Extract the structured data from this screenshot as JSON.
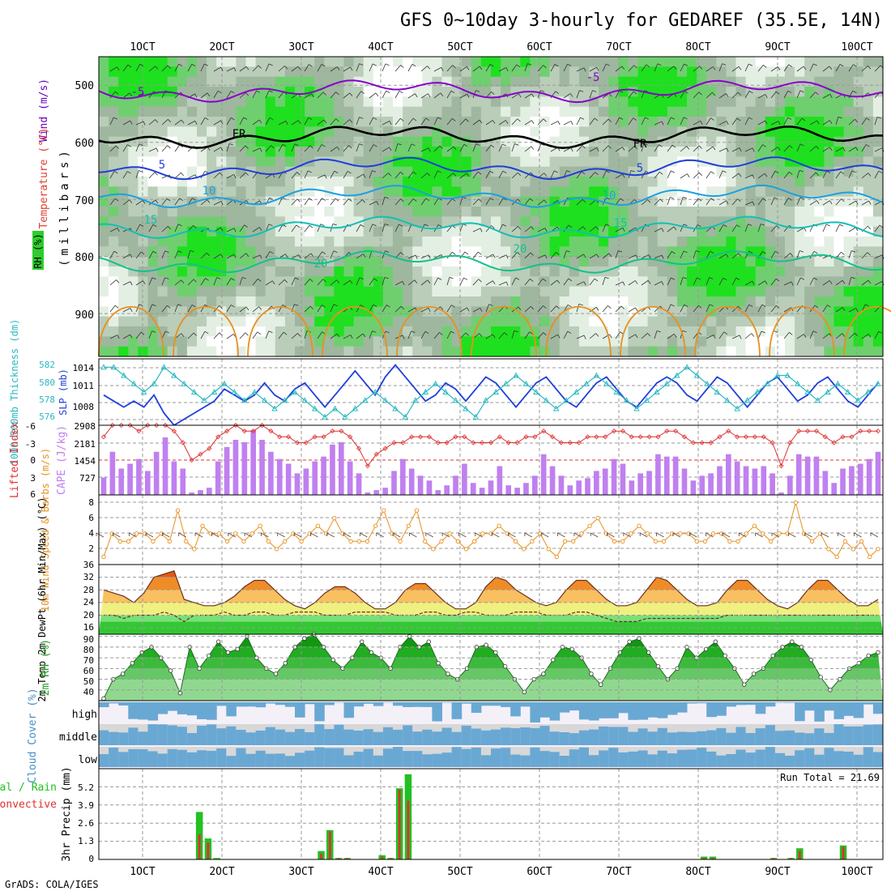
{
  "figure": {
    "title": "GFS 0~10day 3-hourly for GEDAREF (35.5E, 14N)",
    "credit": "GrADS: COLA/IGES",
    "x_axis": {
      "type": "date",
      "tick_labels": [
        "1OCT",
        "2OCT",
        "3OCT",
        "4OCT",
        "5OCT",
        "6OCT",
        "7OCT",
        "8OCT",
        "9OCT",
        "10OCT"
      ]
    }
  },
  "colors": {
    "rh_light": "#e4efe4",
    "rh_mid": "#b9cdb9",
    "rh_grey": "#9fb79f",
    "rh_green": "#6fcf6f",
    "rh_bright": "#1ee01e",
    "temp_purple": "#8800cc",
    "temp_blue": "#1f3fd9",
    "temp_sky": "#1ea0e0",
    "temp_teal": "#14bfb4",
    "temp_green": "#14c08c",
    "temp_orange": "#e8901e",
    "freezing": "#000000",
    "slp": "#1f3fd9",
    "thickness": "#2ab8c0",
    "li": "#e03030",
    "cape": "#c080f0",
    "wind10": "#e8901e",
    "cloud_blue": "#6aa8d4",
    "cloud_grey": "#d8d8d8",
    "precip_total": "#22c022",
    "precip_conv": "#e03030"
  },
  "chart_data": [
    {
      "type": "heatmap",
      "panel": "profile",
      "ylabel": "(millibars)",
      "side_labels": [
        "Wind (m/s)",
        "Temperature (°C)",
        "RH (%)"
      ],
      "y_ticks": [
        "500",
        "600",
        "700",
        "800",
        "900"
      ],
      "ylim": [
        450,
        975
      ],
      "contour_labels": [
        "-5",
        "FR",
        "5",
        "10",
        "15",
        "20",
        "-5",
        "FR",
        "5",
        "10",
        "15",
        "20"
      ],
      "contour_levels": [
        {
          "name": "-5",
          "level_mb": 510
        },
        {
          "name": "FR",
          "level_mb": 590
        },
        {
          "name": "5",
          "level_mb": 645
        },
        {
          "name": "10",
          "level_mb": 695
        },
        {
          "name": "15",
          "level_mb": 750
        },
        {
          "name": "20",
          "level_mb": 810
        }
      ]
    },
    {
      "type": "line",
      "panel": "slp",
      "ylabel_left": "1000-500mb Thickness (dm)",
      "ylabel_right": "SLP (mb)",
      "left_ticks": [
        "582",
        "580",
        "578",
        "576"
      ],
      "right_ticks": [
        "1014",
        "1011",
        "1008"
      ],
      "left_lim": [
        575,
        583
      ],
      "right_lim": [
        1005,
        1016
      ],
      "series": [
        {
          "name": "SLP",
          "axis": "right",
          "values": [
            1010,
            1009,
            1008,
            1009,
            1008,
            1010,
            1007,
            1005,
            1006,
            1007,
            1008,
            1009,
            1011,
            1010,
            1009,
            1010,
            1012,
            1010,
            1009,
            1011,
            1012,
            1010,
            1008,
            1010,
            1012,
            1014,
            1012,
            1010,
            1013,
            1015,
            1013,
            1011,
            1009,
            1010,
            1012,
            1011,
            1009,
            1011,
            1013,
            1012,
            1010,
            1008,
            1010,
            1012,
            1013,
            1011,
            1009,
            1008,
            1010,
            1012,
            1013,
            1011,
            1009,
            1008,
            1010,
            1012,
            1013,
            1012,
            1010,
            1009,
            1011,
            1013,
            1012,
            1010,
            1008,
            1010,
            1012,
            1013,
            1011,
            1009,
            1010,
            1012,
            1013,
            1011,
            1009,
            1008,
            1010,
            1012
          ]
        },
        {
          "name": "Thickness",
          "axis": "left",
          "values": [
            582,
            582,
            581,
            580,
            579,
            580,
            582,
            581,
            580,
            579,
            578,
            579,
            580,
            579,
            578,
            579,
            578,
            577,
            578,
            579,
            578,
            577,
            576,
            577,
            576,
            577,
            578,
            579,
            578,
            577,
            576,
            578,
            579,
            580,
            579,
            578,
            577,
            576,
            578,
            579,
            580,
            581,
            580,
            579,
            578,
            577,
            578,
            579,
            580,
            581,
            580,
            579,
            578,
            577,
            578,
            579,
            580,
            581,
            582,
            581,
            580,
            579,
            578,
            577,
            578,
            579,
            580,
            581,
            581,
            580,
            579,
            578,
            579,
            580,
            579,
            578,
            579,
            580
          ]
        }
      ]
    },
    {
      "type": "bar",
      "panel": "cape_li",
      "ylabel_left": "Lifted Index",
      "ylabel_right": "CAPE (J/kg)",
      "left_ticks": [
        "-6",
        "-3",
        "0",
        "3",
        "6"
      ],
      "right_ticks": [
        "2908",
        "2181",
        "1454",
        "727"
      ],
      "left_lim": [
        -6,
        6
      ],
      "right_lim": [
        0,
        2908
      ],
      "series": [
        {
          "name": "CAPE",
          "values": [
            727,
            1800,
            1100,
            1300,
            1500,
            1000,
            1800,
            2400,
            1400,
            1100,
            100,
            200,
            300,
            1400,
            2000,
            2300,
            2200,
            2700,
            2300,
            1800,
            1500,
            1300,
            900,
            1100,
            1400,
            1600,
            2100,
            2200,
            1400,
            900,
            100,
            200,
            300,
            1000,
            1500,
            1100,
            800,
            600,
            200,
            400,
            800,
            1300,
            500,
            300,
            600,
            1200,
            400,
            300,
            500,
            800,
            1700,
            1200,
            800,
            400,
            600,
            700,
            1000,
            1100,
            1500,
            1300,
            600,
            900,
            1000,
            1700,
            1600,
            1600,
            1100,
            600,
            800,
            900,
            1200,
            1700,
            1400,
            1200,
            1100,
            1200,
            900,
            100,
            800,
            1700,
            1600,
            1600,
            1000,
            500,
            1100,
            1200,
            1300,
            1500,
            1800
          ]
        },
        {
          "name": "LI",
          "values": [
            -4,
            -6,
            -6,
            -6,
            -5,
            -6,
            -6,
            -6,
            -5,
            -3,
            0,
            -1,
            -2,
            -4,
            -5,
            -6,
            -5,
            -5,
            -6,
            -5,
            -4,
            -4,
            -3,
            -3,
            -4,
            -4,
            -5,
            -5,
            -4,
            -2,
            1,
            -1,
            -2,
            -3,
            -3,
            -4,
            -4,
            -4,
            -3,
            -3,
            -4,
            -4,
            -3,
            -3,
            -3,
            -4,
            -3,
            -3,
            -4,
            -4,
            -5,
            -4,
            -3,
            -3,
            -3,
            -4,
            -4,
            -4,
            -5,
            -5,
            -4,
            -4,
            -4,
            -4,
            -5,
            -5,
            -4,
            -3,
            -3,
            -3,
            -4,
            -5,
            -4,
            -4,
            -4,
            -4,
            -3,
            1,
            -3,
            -5,
            -5,
            -5,
            -4,
            -3,
            -4,
            -4,
            -5,
            -5,
            -5
          ]
        }
      ]
    },
    {
      "type": "line",
      "panel": "wind10",
      "ylabel": "10m Wind Speed & Barbs (m/s)",
      "y_ticks": [
        "8",
        "6",
        "4",
        "2"
      ],
      "ylim": [
        0,
        9
      ],
      "values": [
        1,
        4,
        3,
        3,
        4,
        4,
        3,
        4,
        3,
        7,
        3,
        2,
        5,
        4,
        4,
        3,
        4,
        3,
        4,
        5,
        3,
        2,
        3,
        4,
        3,
        4,
        5,
        4,
        6,
        4,
        3,
        3,
        3,
        5,
        7,
        4,
        3,
        5,
        7,
        3,
        2,
        3,
        4,
        3,
        2,
        3,
        4,
        4,
        5,
        4,
        3,
        2,
        3,
        4,
        2,
        1,
        3,
        3,
        4,
        5,
        6,
        4,
        3,
        3,
        4,
        5,
        4,
        3,
        3,
        4,
        4,
        4,
        3,
        3,
        4,
        4,
        3,
        3,
        4,
        5,
        4,
        3,
        4,
        4,
        8,
        4,
        3,
        4,
        2,
        1,
        3,
        2,
        3,
        1,
        2
      ]
    },
    {
      "type": "area",
      "panel": "temp2m",
      "ylabel": "2m Temp 2m DewPt (6hr Min/Max) (°C)",
      "y_ticks": [
        "36",
        "32",
        "28",
        "24",
        "20",
        "16"
      ],
      "ylim": [
        14,
        36
      ],
      "temp": [
        28,
        27,
        26,
        24,
        27,
        32,
        33,
        34,
        25,
        24,
        23,
        23,
        24,
        26,
        29,
        31,
        31,
        28,
        25,
        23,
        22,
        24,
        27,
        29,
        29,
        27,
        24,
        22,
        22,
        24,
        28,
        30,
        30,
        27,
        24,
        22,
        22,
        24,
        29,
        32,
        31,
        28,
        26,
        24,
        23,
        24,
        28,
        31,
        31,
        28,
        25,
        23,
        23,
        24,
        28,
        32,
        31,
        28,
        25,
        23,
        23,
        24,
        28,
        31,
        31,
        28,
        25,
        23,
        22,
        24,
        28,
        31,
        31,
        28,
        25,
        23,
        23,
        25
      ],
      "dewpt": [
        20,
        20,
        19,
        20,
        20,
        20,
        21,
        20,
        18,
        20,
        20,
        20,
        21,
        20,
        20,
        21,
        21,
        20,
        20,
        21,
        21,
        21,
        20,
        20,
        20,
        21,
        21,
        21,
        21,
        20,
        20,
        20,
        21,
        21,
        20,
        20,
        21,
        21,
        20,
        20,
        20,
        21,
        21,
        21,
        20,
        20,
        20,
        21,
        21,
        20,
        19,
        18,
        18,
        18,
        19,
        19,
        19,
        19,
        19,
        19,
        19,
        19,
        20,
        20,
        20,
        20,
        20,
        20,
        20,
        20,
        20,
        20,
        20,
        20,
        20,
        20,
        20,
        20
      ]
    },
    {
      "type": "area",
      "panel": "rh2m",
      "ylabel": "2m RH (%)",
      "y_ticks": [
        "90",
        "80",
        "70",
        "60",
        "50",
        "40"
      ],
      "ylim": [
        30,
        92
      ],
      "values": [
        32,
        50,
        55,
        65,
        75,
        80,
        70,
        58,
        37,
        80,
        60,
        72,
        85,
        75,
        78,
        90,
        70,
        60,
        55,
        65,
        80,
        88,
        92,
        80,
        68,
        60,
        70,
        85,
        75,
        70,
        60,
        80,
        90,
        80,
        85,
        65,
        55,
        50,
        60,
        80,
        82,
        75,
        62,
        50,
        38,
        50,
        55,
        68,
        80,
        78,
        70,
        55,
        45,
        60,
        75,
        85,
        88,
        75,
        62,
        50,
        60,
        80,
        70,
        78,
        85,
        72,
        60,
        45,
        55,
        60,
        72,
        80,
        85,
        80,
        68,
        52,
        40,
        50,
        60,
        65,
        72,
        75
      ]
    },
    {
      "type": "heatmap",
      "panel": "cloud",
      "ylabel": "Cloud Cover (%)",
      "row_labels": [
        "high",
        "middle",
        "low"
      ]
    },
    {
      "type": "bar",
      "panel": "precip",
      "ylabel": "3hr Precip (mm)",
      "side_labels": [
        "Total / Rain",
        "Convective"
      ],
      "annotation": "Run Total = 21.69",
      "y_ticks": [
        "5.2",
        "3.9",
        "2.6",
        "1.3",
        "0"
      ],
      "ylim": [
        0,
        6.5
      ],
      "series": [
        {
          "name": "Total",
          "values": [
            0,
            0,
            0,
            0,
            0,
            0,
            0,
            0,
            0,
            0,
            0,
            3.4,
            1.5,
            0.1,
            0,
            0,
            0,
            0,
            0,
            0,
            0,
            0,
            0,
            0,
            0,
            0.6,
            2.1,
            0.1,
            0.1,
            0,
            0,
            0,
            0.3,
            0.1,
            5.1,
            6.1,
            0,
            0,
            0,
            0,
            0,
            0,
            0,
            0,
            0,
            0,
            0,
            0,
            0,
            0,
            0,
            0,
            0,
            0,
            0,
            0,
            0,
            0,
            0,
            0,
            0,
            0,
            0,
            0,
            0,
            0,
            0,
            0,
            0,
            0.2,
            0.2,
            0,
            0,
            0,
            0,
            0,
            0,
            0.1,
            0,
            0.1,
            0.8,
            0,
            0,
            0,
            0,
            1.0,
            0,
            0,
            0,
            0
          ]
        },
        {
          "name": "Convective",
          "values": [
            0,
            0,
            0,
            0,
            0,
            0,
            0,
            0,
            0,
            0,
            0,
            1.8,
            1.2,
            0,
            0,
            0,
            0,
            0,
            0,
            0,
            0,
            0,
            0,
            0,
            0,
            0.4,
            2.0,
            0.1,
            0.1,
            0,
            0,
            0,
            0.2,
            0.1,
            5.0,
            4.2,
            0,
            0,
            0,
            0,
            0,
            0,
            0,
            0,
            0,
            0,
            0,
            0,
            0,
            0,
            0,
            0,
            0,
            0,
            0,
            0,
            0,
            0,
            0,
            0,
            0,
            0,
            0,
            0,
            0,
            0,
            0,
            0,
            0,
            0.1,
            0.1,
            0,
            0,
            0,
            0,
            0,
            0,
            0.1,
            0,
            0.1,
            0.6,
            0,
            0,
            0,
            0,
            0.9,
            0,
            0,
            0,
            0
          ]
        }
      ]
    }
  ]
}
